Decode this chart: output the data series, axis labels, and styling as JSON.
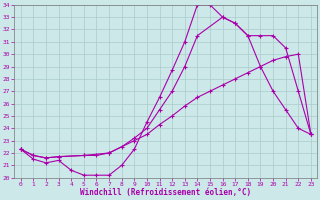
{
  "xlabel": "Windchill (Refroidissement éolien,°C)",
  "xlim": [
    -0.5,
    23.5
  ],
  "ylim": [
    20,
    34
  ],
  "xticks": [
    0,
    1,
    2,
    3,
    4,
    5,
    6,
    7,
    8,
    9,
    10,
    11,
    12,
    13,
    14,
    15,
    16,
    17,
    18,
    19,
    20,
    21,
    22,
    23
  ],
  "yticks": [
    20,
    21,
    22,
    23,
    24,
    25,
    26,
    27,
    28,
    29,
    30,
    31,
    32,
    33,
    34
  ],
  "background_color": "#cce8e8",
  "line_color": "#aa00aa",
  "grid_color": "#aacccc",
  "line1_x": [
    0,
    1,
    2,
    3,
    4,
    5,
    6,
    7,
    8,
    9,
    10,
    11,
    12,
    13,
    14,
    15,
    16,
    17,
    18,
    19,
    20,
    21,
    22,
    23
  ],
  "line1_y": [
    22.3,
    21.5,
    21.2,
    21.4,
    20.6,
    20.2,
    20.2,
    20.2,
    21.0,
    22.3,
    24.5,
    26.5,
    28.7,
    31.0,
    34.0,
    34.0,
    33.0,
    32.5,
    31.5,
    31.5,
    31.5,
    30.5,
    27.0,
    23.5
  ],
  "line2_x": [
    0,
    1,
    2,
    3,
    5,
    6,
    7,
    9,
    10,
    11,
    12,
    13,
    14,
    15,
    16,
    17,
    18,
    19,
    20,
    21,
    22,
    23
  ],
  "line2_y": [
    22.3,
    21.8,
    21.6,
    21.7,
    21.8,
    21.8,
    22.0,
    23.0,
    23.5,
    24.3,
    25.0,
    25.8,
    26.5,
    27.0,
    27.5,
    28.0,
    28.5,
    29.0,
    29.5,
    29.8,
    30.0,
    23.5
  ],
  "line3_x": [
    0,
    1,
    2,
    3,
    5,
    7,
    8,
    9,
    10,
    11,
    12,
    13,
    14,
    16,
    17,
    18,
    19,
    20,
    21,
    22,
    23
  ],
  "line3_y": [
    22.3,
    21.8,
    21.6,
    21.7,
    21.8,
    22.0,
    22.5,
    23.2,
    24.0,
    25.5,
    27.0,
    29.0,
    31.5,
    33.0,
    32.5,
    31.5,
    29.0,
    27.0,
    25.5,
    24.0,
    23.5
  ]
}
